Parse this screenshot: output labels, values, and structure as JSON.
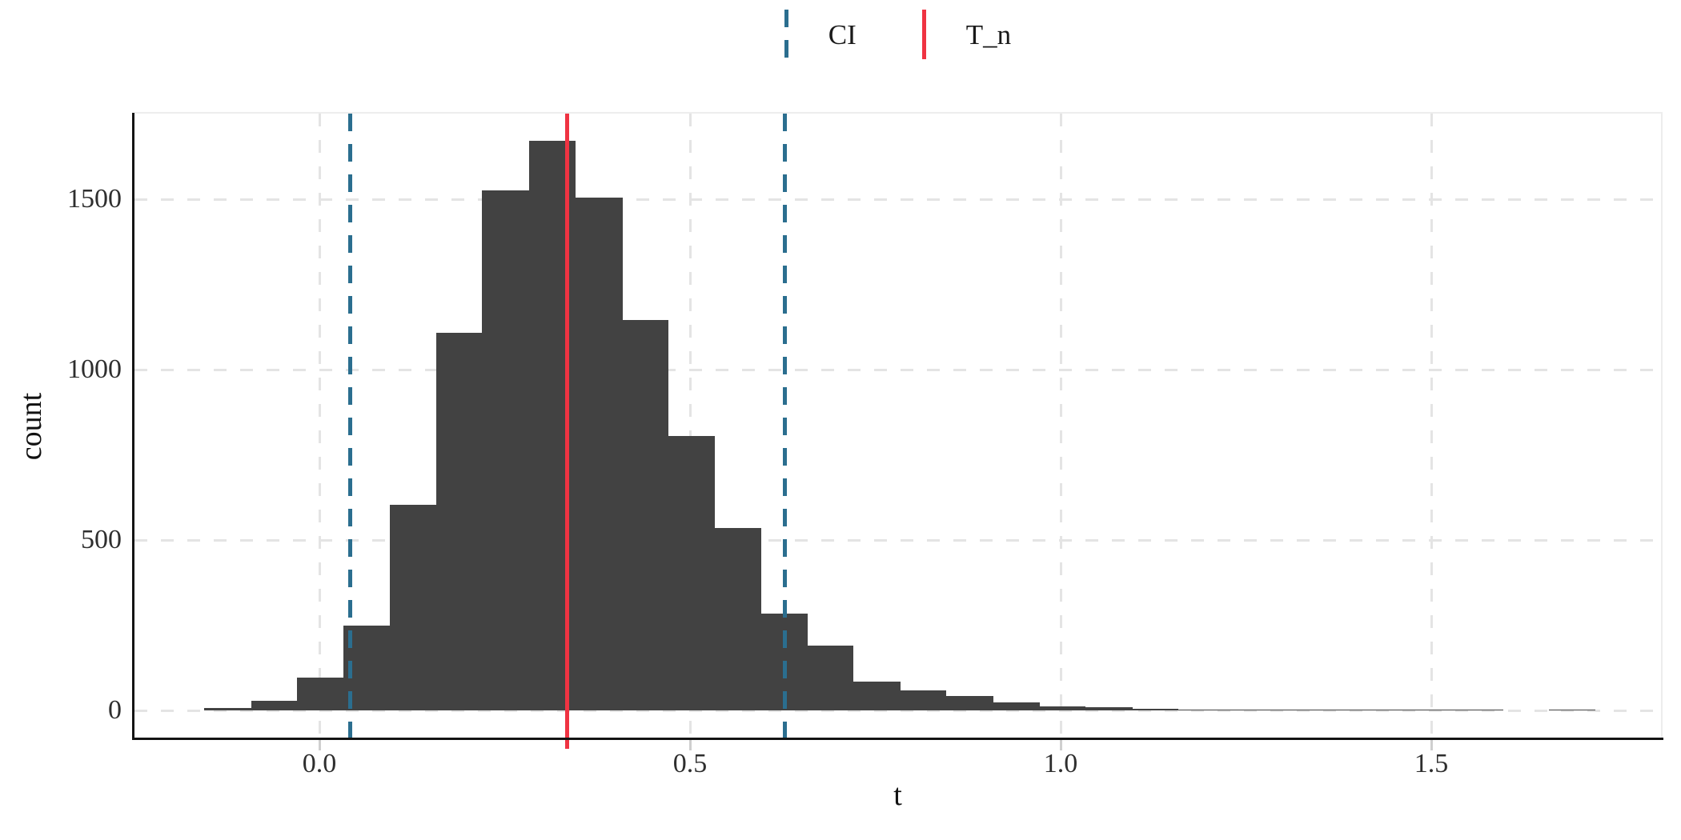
{
  "legend": {
    "items": [
      {
        "label": "CI",
        "color": "#2b6e8f",
        "line_style": "dashed"
      },
      {
        "label": "T_n",
        "color": "#ef3342",
        "line_style": "solid"
      }
    ]
  },
  "axes": {
    "x": {
      "label": "t",
      "tick_labels": [
        "0.0",
        "0.5",
        "1.0",
        "1.5"
      ],
      "tick_values": [
        0.0,
        0.5,
        1.0,
        1.5
      ],
      "range": [
        -0.25,
        1.81
      ]
    },
    "y": {
      "label": "count",
      "tick_labels": [
        "0",
        "500",
        "1000",
        "1500"
      ],
      "tick_values": [
        0,
        500,
        1000,
        1500
      ],
      "range": [
        -80,
        1751
      ]
    }
  },
  "chart_data": {
    "type": "bar",
    "subtype": "histogram",
    "title": "",
    "xlabel": "t",
    "ylabel": "count",
    "grid": "dashed",
    "legend_position": "top-center",
    "xlim": [
      -0.25,
      1.81
    ],
    "ylim": [
      -80,
      1751
    ],
    "bin_width": 0.0625,
    "bin_centers": [
      -0.124,
      -0.061,
      0.001,
      0.064,
      0.126,
      0.189,
      0.251,
      0.314,
      0.377,
      0.439,
      0.502,
      0.564,
      0.627,
      0.689,
      0.752,
      0.814,
      0.877,
      0.94,
      1.002,
      1.065,
      1.127,
      1.19,
      1.252,
      1.315,
      1.377,
      1.44,
      1.502,
      1.565,
      1.627,
      1.69
    ],
    "counts": [
      7,
      28,
      96,
      249,
      604,
      1108,
      1526,
      1671,
      1505,
      1146,
      805,
      535,
      285,
      190,
      85,
      58,
      42,
      23,
      11,
      9,
      4,
      3,
      2,
      3,
      2,
      1,
      1,
      1,
      0,
      1
    ],
    "vlines": [
      {
        "name": "ci-lower",
        "label": "CI",
        "value": 0.042,
        "style": "dashed",
        "color": "#2b6e8f"
      },
      {
        "name": "ci-upper",
        "label": "CI",
        "value": 0.628,
        "style": "dashed",
        "color": "#2b6e8f"
      },
      {
        "name": "tn",
        "label": "T_n",
        "value": 0.334,
        "style": "solid",
        "color": "#ef3342"
      }
    ]
  },
  "colors": {
    "bar": "#424242",
    "grid": "#e4e4e4",
    "axis_line": "#141414",
    "panel_border": "#ededed",
    "tick": "#cfcfcf",
    "tick_text": "#2e2e2e",
    "title_text": "#111111",
    "ci_line": "#2b6e8f",
    "tn_line": "#ef3342",
    "background": "#ffffff"
  }
}
